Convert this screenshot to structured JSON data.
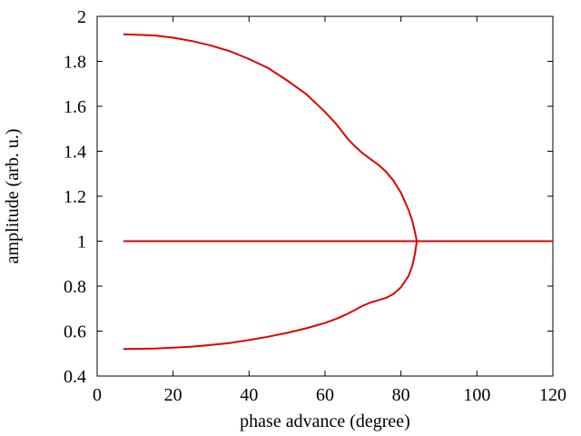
{
  "chart_data": {
    "type": "line",
    "title": "",
    "xlabel": "phase advance (degree)",
    "ylabel": "amplitude (arb. u.)",
    "xlim": [
      0,
      120
    ],
    "ylim": [
      0.4,
      2
    ],
    "x_ticks": [
      0,
      20,
      40,
      60,
      80,
      100,
      120
    ],
    "x_tick_labels": [
      "0",
      "20",
      "40",
      "60",
      "80",
      "100",
      "120"
    ],
    "y_ticks": [
      0.4,
      0.6,
      0.8,
      1.0,
      1.2,
      1.4,
      1.6,
      1.8,
      2.0
    ],
    "y_tick_labels": [
      "0.4",
      "0.6",
      "0.8",
      "1",
      "1.2",
      "1.4",
      "1.6",
      "1.8",
      "2"
    ],
    "grid": false,
    "legend": "none",
    "line_color": "#e00000",
    "series": [
      {
        "x": [
          6.9,
          15,
          20,
          25,
          30,
          35,
          40,
          45,
          50,
          55,
          60,
          63,
          66,
          68,
          70,
          72,
          74,
          76,
          78,
          80,
          82,
          83,
          83.7,
          84.2
        ],
        "y": [
          1.92,
          1.915,
          1.905,
          1.89,
          1.87,
          1.845,
          1.81,
          1.77,
          1.715,
          1.655,
          1.575,
          1.52,
          1.455,
          1.42,
          1.39,
          1.365,
          1.34,
          1.31,
          1.27,
          1.215,
          1.14,
          1.09,
          1.04,
          1.0
        ]
      },
      {
        "x": [
          6.9,
          15,
          20,
          25,
          30,
          35,
          40,
          45,
          50,
          55,
          60,
          63,
          66,
          68,
          70,
          72,
          74,
          76,
          78,
          80,
          82,
          83,
          83.7,
          84.2
        ],
        "y": [
          0.52,
          0.522,
          0.526,
          0.531,
          0.538,
          0.547,
          0.56,
          0.575,
          0.592,
          0.612,
          0.636,
          0.655,
          0.677,
          0.695,
          0.713,
          0.727,
          0.737,
          0.747,
          0.765,
          0.795,
          0.845,
          0.89,
          0.945,
          1.0
        ]
      },
      {
        "x": [
          6.9,
          120
        ],
        "y": [
          1.0,
          1.0
        ]
      }
    ]
  }
}
